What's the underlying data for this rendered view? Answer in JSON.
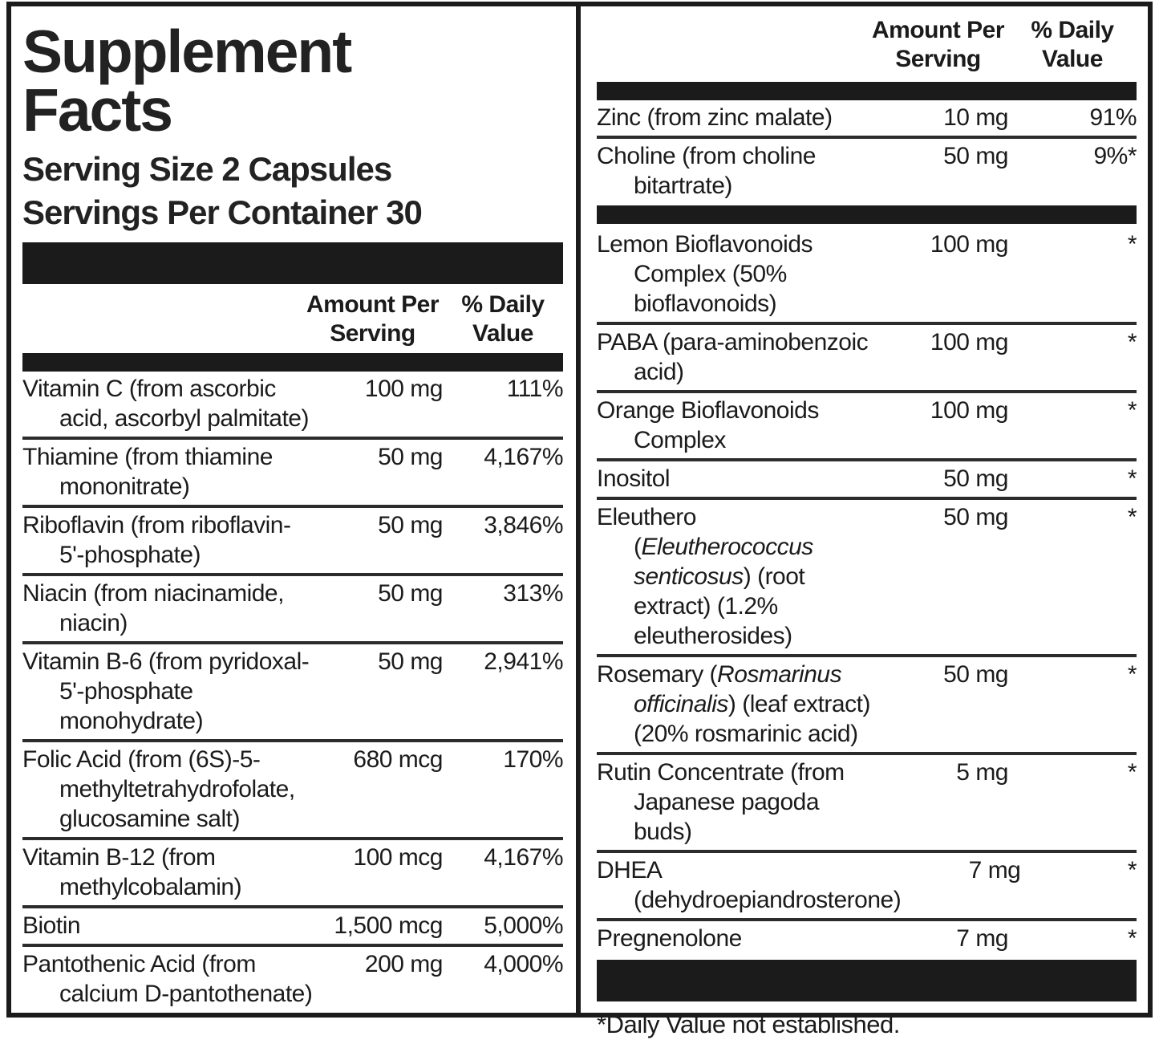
{
  "label": {
    "title": "Supplement Facts",
    "serving_size": "Serving Size 2 Capsules",
    "servings_per_container": "Servings Per Container 30",
    "columns": {
      "amount_lines": [
        "Amount Per",
        "Serving"
      ],
      "daily_value_lines": [
        "% Daily",
        "Value"
      ]
    },
    "footnote": "*Daily Value not established.",
    "colors": {
      "ink": "#1b1b1b",
      "bar": "#1b1b1b",
      "background": "#ffffff"
    },
    "left_rows": [
      {
        "name": [
          {
            "t": "Vitamin C (from ascorbic acid, ascorbyl palmitate)"
          }
        ],
        "amount": "100 mg",
        "dv": "111%"
      },
      {
        "name": [
          {
            "t": "Thiamine (from thiamine mononitrate)"
          }
        ],
        "amount": "50 mg",
        "dv": "4,167%"
      },
      {
        "name": [
          {
            "t": "Riboflavin (from riboflavin-5'-phosphate)"
          }
        ],
        "amount": "50 mg",
        "dv": "3,846%"
      },
      {
        "name": [
          {
            "t": "Niacin (from niacinamide, niacin)"
          }
        ],
        "amount": "50 mg",
        "dv": "313%"
      },
      {
        "name": [
          {
            "t": "Vitamin B-6 (from pyridoxal-5'-phosphate monohydrate)"
          }
        ],
        "amount": "50 mg",
        "dv": "2,941%"
      },
      {
        "name": [
          {
            "t": "Folic Acid (from (6S)-5-methyltetrahydrofolate, glucosamine salt)"
          }
        ],
        "amount": "680 mcg",
        "dv": "170%"
      },
      {
        "name": [
          {
            "t": "Vitamin B-12 (from methylcobalamin)"
          }
        ],
        "amount": "100 mcg",
        "dv": "4,167%"
      },
      {
        "name": [
          {
            "t": "Biotin"
          }
        ],
        "amount": "1,500 mcg",
        "dv": "5,000%"
      },
      {
        "name": [
          {
            "t": "Pantothenic Acid (from calcium D-pantothenate)"
          }
        ],
        "amount": "200 mg",
        "dv": "4,000%"
      }
    ],
    "right_rows": [
      {
        "name": [
          {
            "t": "Zinc (from zinc malate)"
          }
        ],
        "amount": "10 mg",
        "dv": "91%"
      },
      {
        "name": [
          {
            "t": "Choline (from choline bitartrate)"
          }
        ],
        "amount": "50 mg",
        "dv": "9%*",
        "bar_after": true
      },
      {
        "name": [
          {
            "t": "Lemon Bioflavonoids Complex (50% bioflavonoids)"
          }
        ],
        "amount": "100 mg",
        "dv": "*"
      },
      {
        "name": [
          {
            "t": "PABA (para-aminobenzoic acid)"
          }
        ],
        "amount": "100 mg",
        "dv": "*"
      },
      {
        "name": [
          {
            "t": "Orange Bioflavonoids Complex"
          }
        ],
        "amount": "100 mg",
        "dv": "*"
      },
      {
        "name": [
          {
            "t": "Inositol"
          }
        ],
        "amount": "50 mg",
        "dv": "*"
      },
      {
        "name": [
          {
            "t": "Eleuthero ("
          },
          {
            "t": "Eleutherococcus senticosus",
            "i": true
          },
          {
            "t": ") (root extract) (1.2% eleutherosides)"
          }
        ],
        "amount": "50 mg",
        "dv": "*"
      },
      {
        "name": [
          {
            "t": "Rosemary ("
          },
          {
            "t": "Rosmarinus officinalis",
            "i": true
          },
          {
            "t": ") (leaf extract) (20% rosmarinic acid)"
          }
        ],
        "amount": "50 mg",
        "dv": "*"
      },
      {
        "name": [
          {
            "t": "Rutin Concentrate (from Japanese pagoda buds)"
          }
        ],
        "amount": "5 mg",
        "dv": "*"
      },
      {
        "name": [
          {
            "t": "DHEA (dehydroepiandrosterone)"
          }
        ],
        "amount": "7 mg",
        "dv": "*"
      },
      {
        "name": [
          {
            "t": "Pregnenolone"
          }
        ],
        "amount": "7 mg",
        "dv": "*",
        "bar_after": true
      }
    ]
  }
}
